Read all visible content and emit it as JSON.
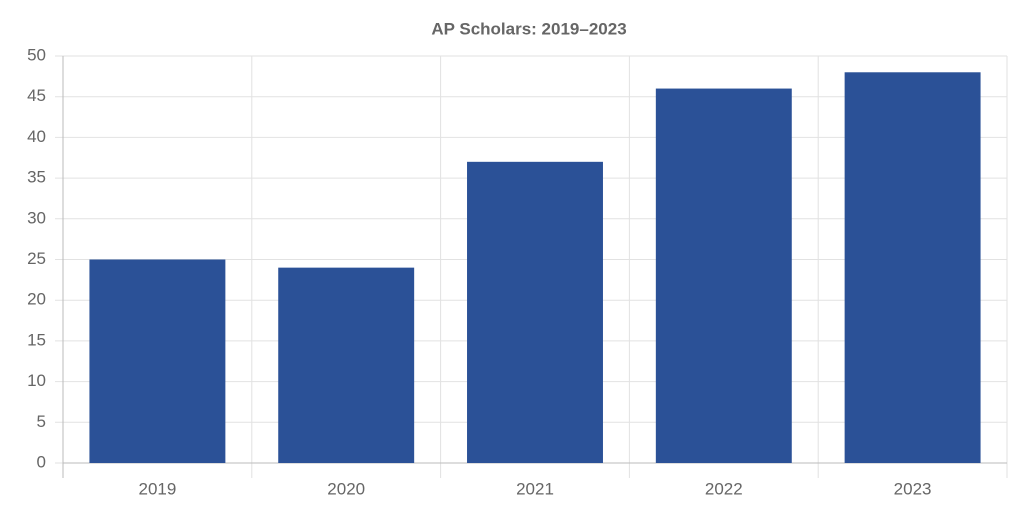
{
  "chart_data": {
    "type": "bar",
    "title": "AP Scholars: 2019–2023",
    "categories": [
      "2019",
      "2020",
      "2021",
      "2022",
      "2023"
    ],
    "values": [
      25,
      24,
      37,
      46,
      48
    ],
    "color": "#2b5197",
    "ylim": [
      0,
      50
    ],
    "yticks": [
      0,
      5,
      10,
      15,
      20,
      25,
      30,
      35,
      40,
      45,
      50
    ],
    "grid": true
  }
}
